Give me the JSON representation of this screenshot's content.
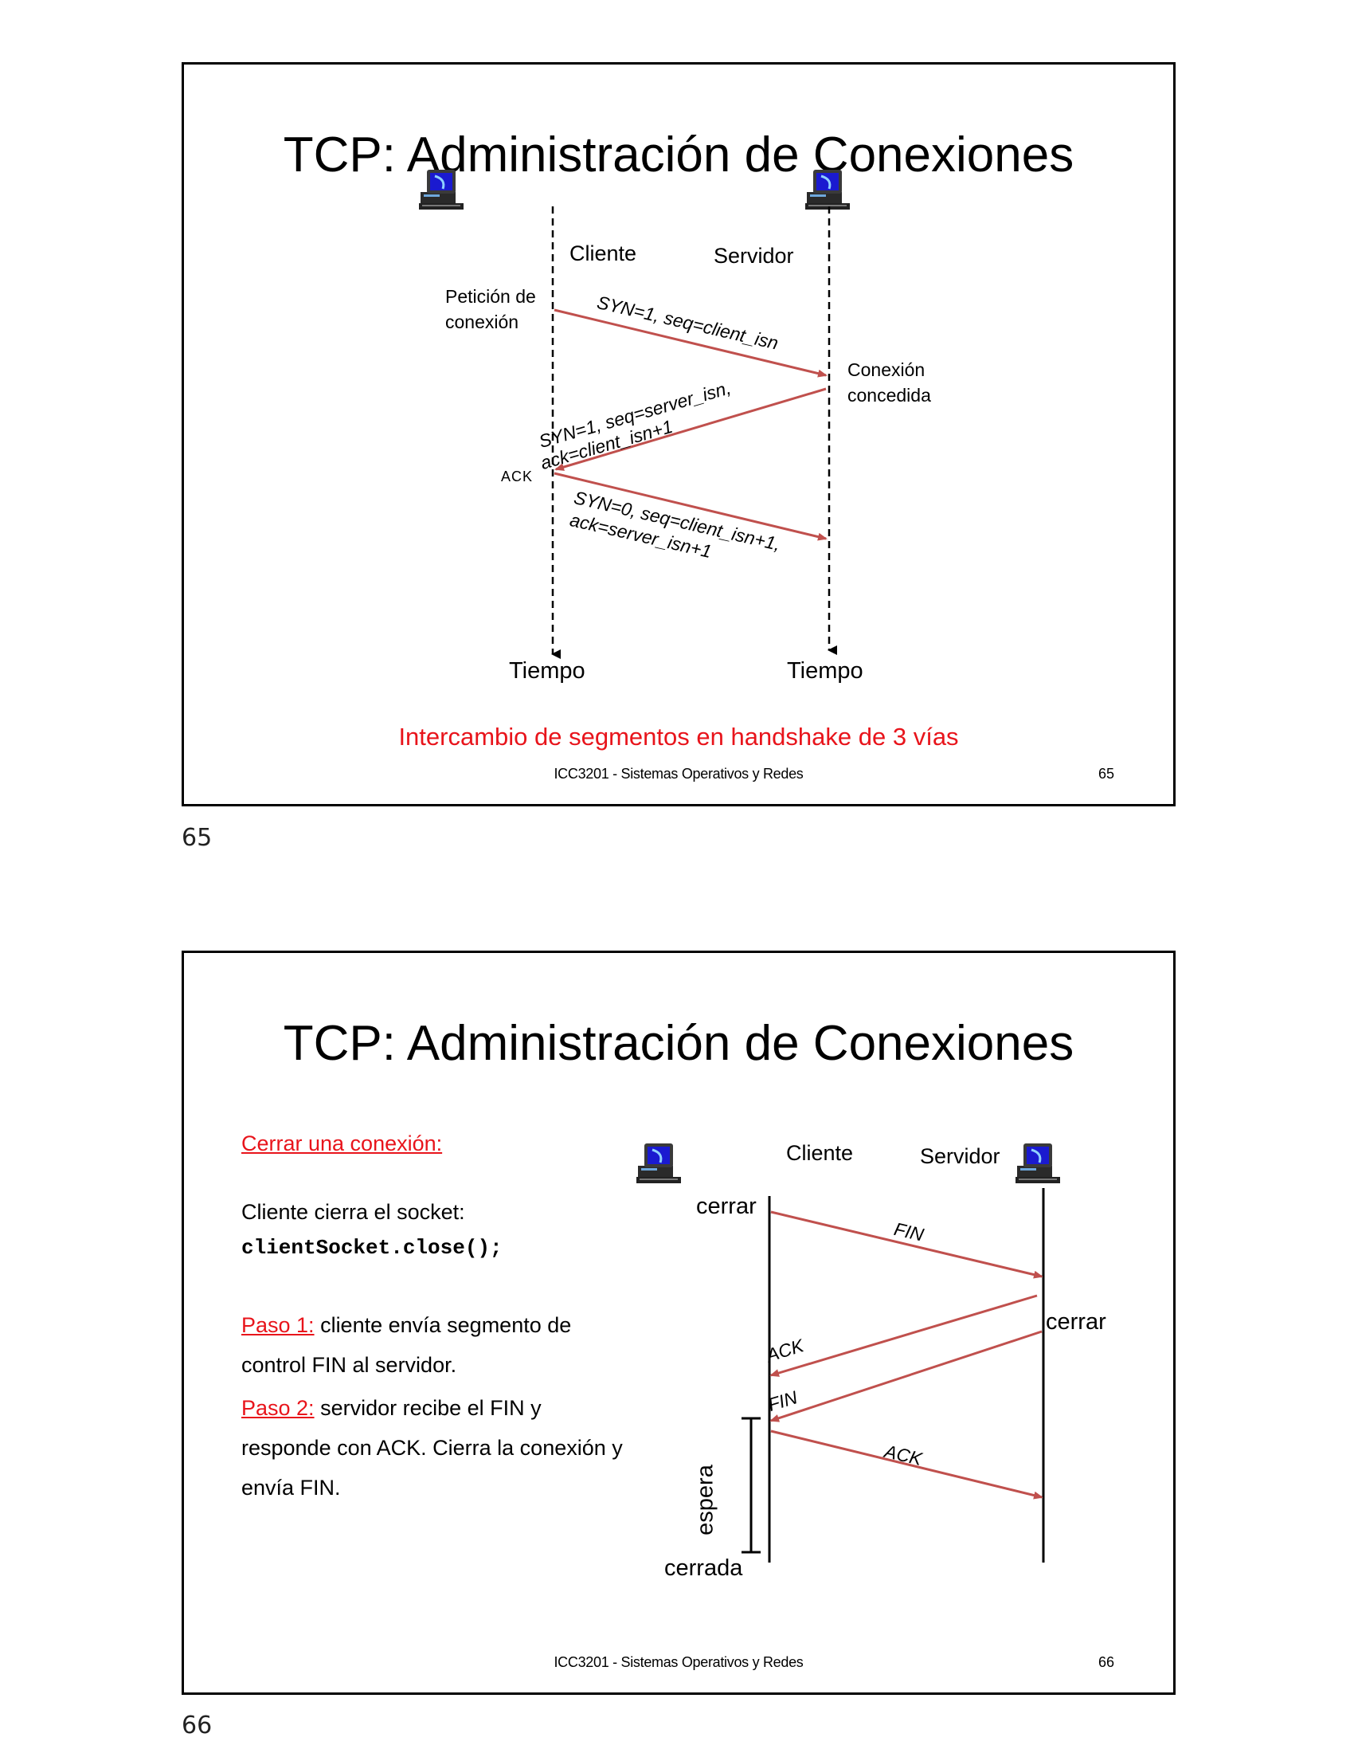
{
  "slide1": {
    "title": "TCP: Administración de Conexiones",
    "cliente": "Cliente",
    "servidor": "Servidor",
    "peticion": "Petición de",
    "conexion": "conexión",
    "msg1": "SYN=1, seq=client_isn",
    "concedida1": "Conexión",
    "concedida2": "concedida",
    "msg2a": "SYN=1, seq=server_isn,",
    "msg2b": "ack=client_isn+1",
    "ack": "ACK",
    "msg3a": "SYN=0, seq=client_isn+1,",
    "msg3b": "ack=server_isn+1",
    "tiempo_left": "Tiempo",
    "tiempo_right": "Tiempo",
    "caption": "Intercambio de segmentos en handshake de 3 vías",
    "footer": "ICC3201 - Sistemas Operativos y Redes",
    "slide_number": "65"
  },
  "page_label_1": "65",
  "slide2": {
    "title": "TCP: Administración de Conexiones",
    "heading": "Cerrar una conexión:",
    "line1": "Cliente cierra el socket:",
    "code": "clientSocket.close();",
    "paso1_label": "Paso 1:",
    "paso1_text": " cliente envía segmento de",
    "paso1_text2": "control FIN al servidor.",
    "paso2_label": "Paso 2:",
    "paso2_text": " servidor recibe el FIN y",
    "paso2_text2": "responde con ACK. Cierra la conexión y",
    "paso2_text3": "envía FIN.",
    "cliente": "Cliente",
    "servidor": "Servidor",
    "cerrar_left": "cerrar",
    "cerrar_right": "cerrar",
    "fin1": "FIN",
    "ack1": "ACK",
    "fin2": "FIN",
    "ack2": "ACK",
    "espera": "espera",
    "cerrada": "cerrada",
    "footer": "ICC3201 - Sistemas Operativos y Redes",
    "slide_number": "66"
  },
  "page_label_2": "66",
  "colors": {
    "arrow": "#c0504d",
    "accent": "#e8141b"
  },
  "icons": [
    "computer-icon"
  ]
}
